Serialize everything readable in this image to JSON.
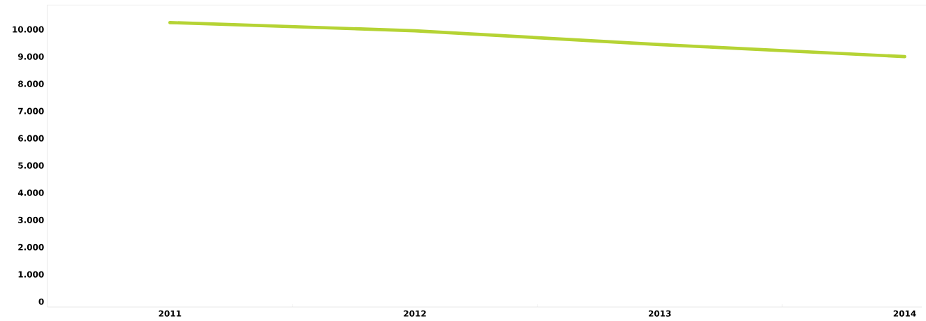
{
  "chart_data": {
    "type": "line",
    "categories": [
      "2011",
      "2012",
      "2013",
      "2014"
    ],
    "series": [
      {
        "color": "#b5d334",
        "values": [
          10250,
          9950,
          9440,
          9000
        ]
      }
    ],
    "ylim": [
      -200,
      10900
    ],
    "yticks": [
      0,
      {
        "value": 1000,
        "label": "1.000"
      },
      {
        "value": 2000,
        "label": "2.000"
      },
      {
        "value": 3000,
        "label": "3.000"
      },
      {
        "value": 4000,
        "label": "4.000"
      },
      {
        "value": 5000,
        "label": "5.000"
      },
      {
        "value": 6000,
        "label": "6.000"
      },
      {
        "value": 7000,
        "label": "7.000"
      },
      {
        "value": 8000,
        "label": "8.000"
      },
      {
        "value": 9000,
        "label": "9.000"
      },
      {
        "value": 10000,
        "label": "10.000"
      }
    ],
    "marker": "none",
    "line_style": "solid"
  }
}
